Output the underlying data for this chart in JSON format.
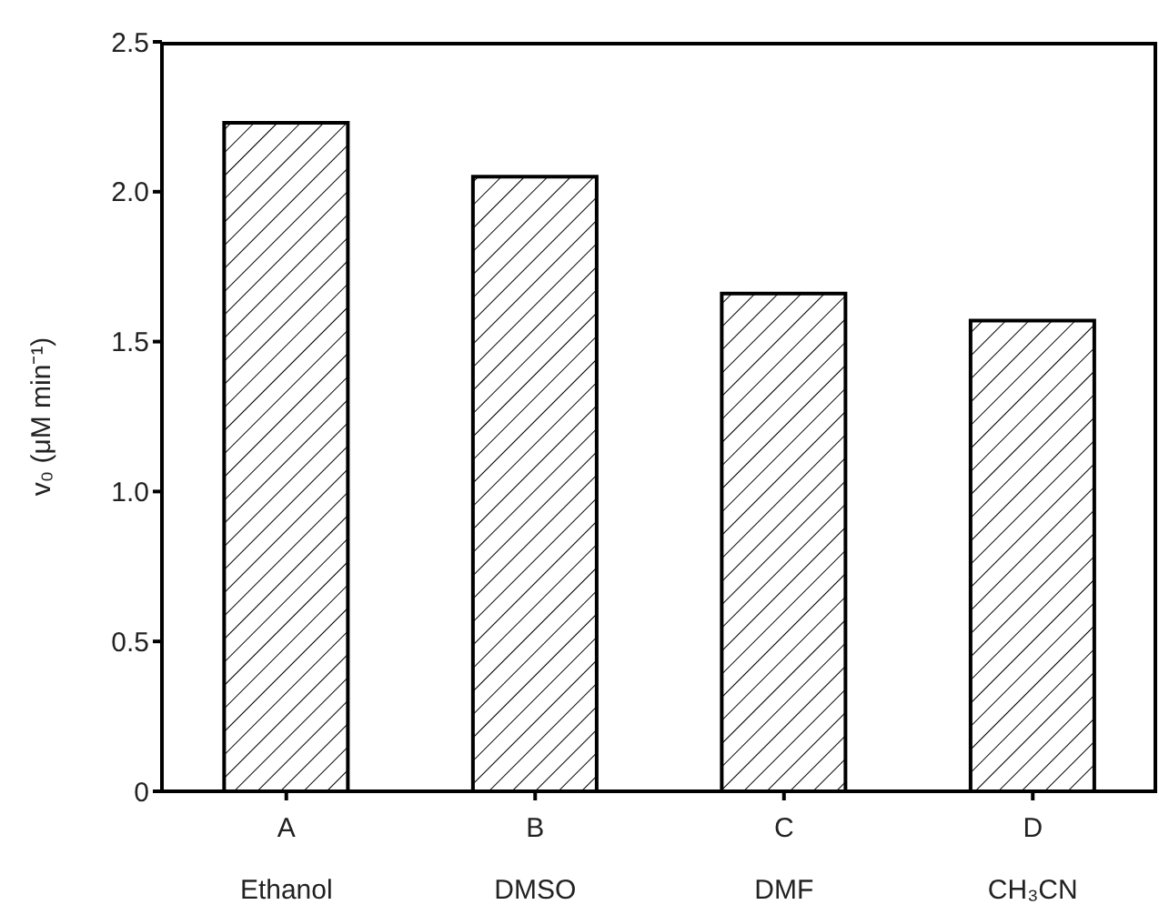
{
  "chart_data": {
    "type": "bar",
    "ylabel": "v₀ (μM min⁻¹)",
    "categories": [
      "A\nEthanol",
      "B\nDMSO",
      "C\nDMF",
      "D\nCH₃CN"
    ],
    "series": [
      {
        "color": "#000000",
        "values": [
          2.23,
          2.05,
          1.66,
          1.57
        ]
      }
    ],
    "ylim": [
      0,
      2.5
    ],
    "yticks": [
      0,
      0.5,
      {
        "value": 1,
        "label": "1.0"
      },
      1.5,
      {
        "value": 2,
        "label": "2.0"
      },
      2.5
    ],
    "grid": false,
    "legend": false
  }
}
